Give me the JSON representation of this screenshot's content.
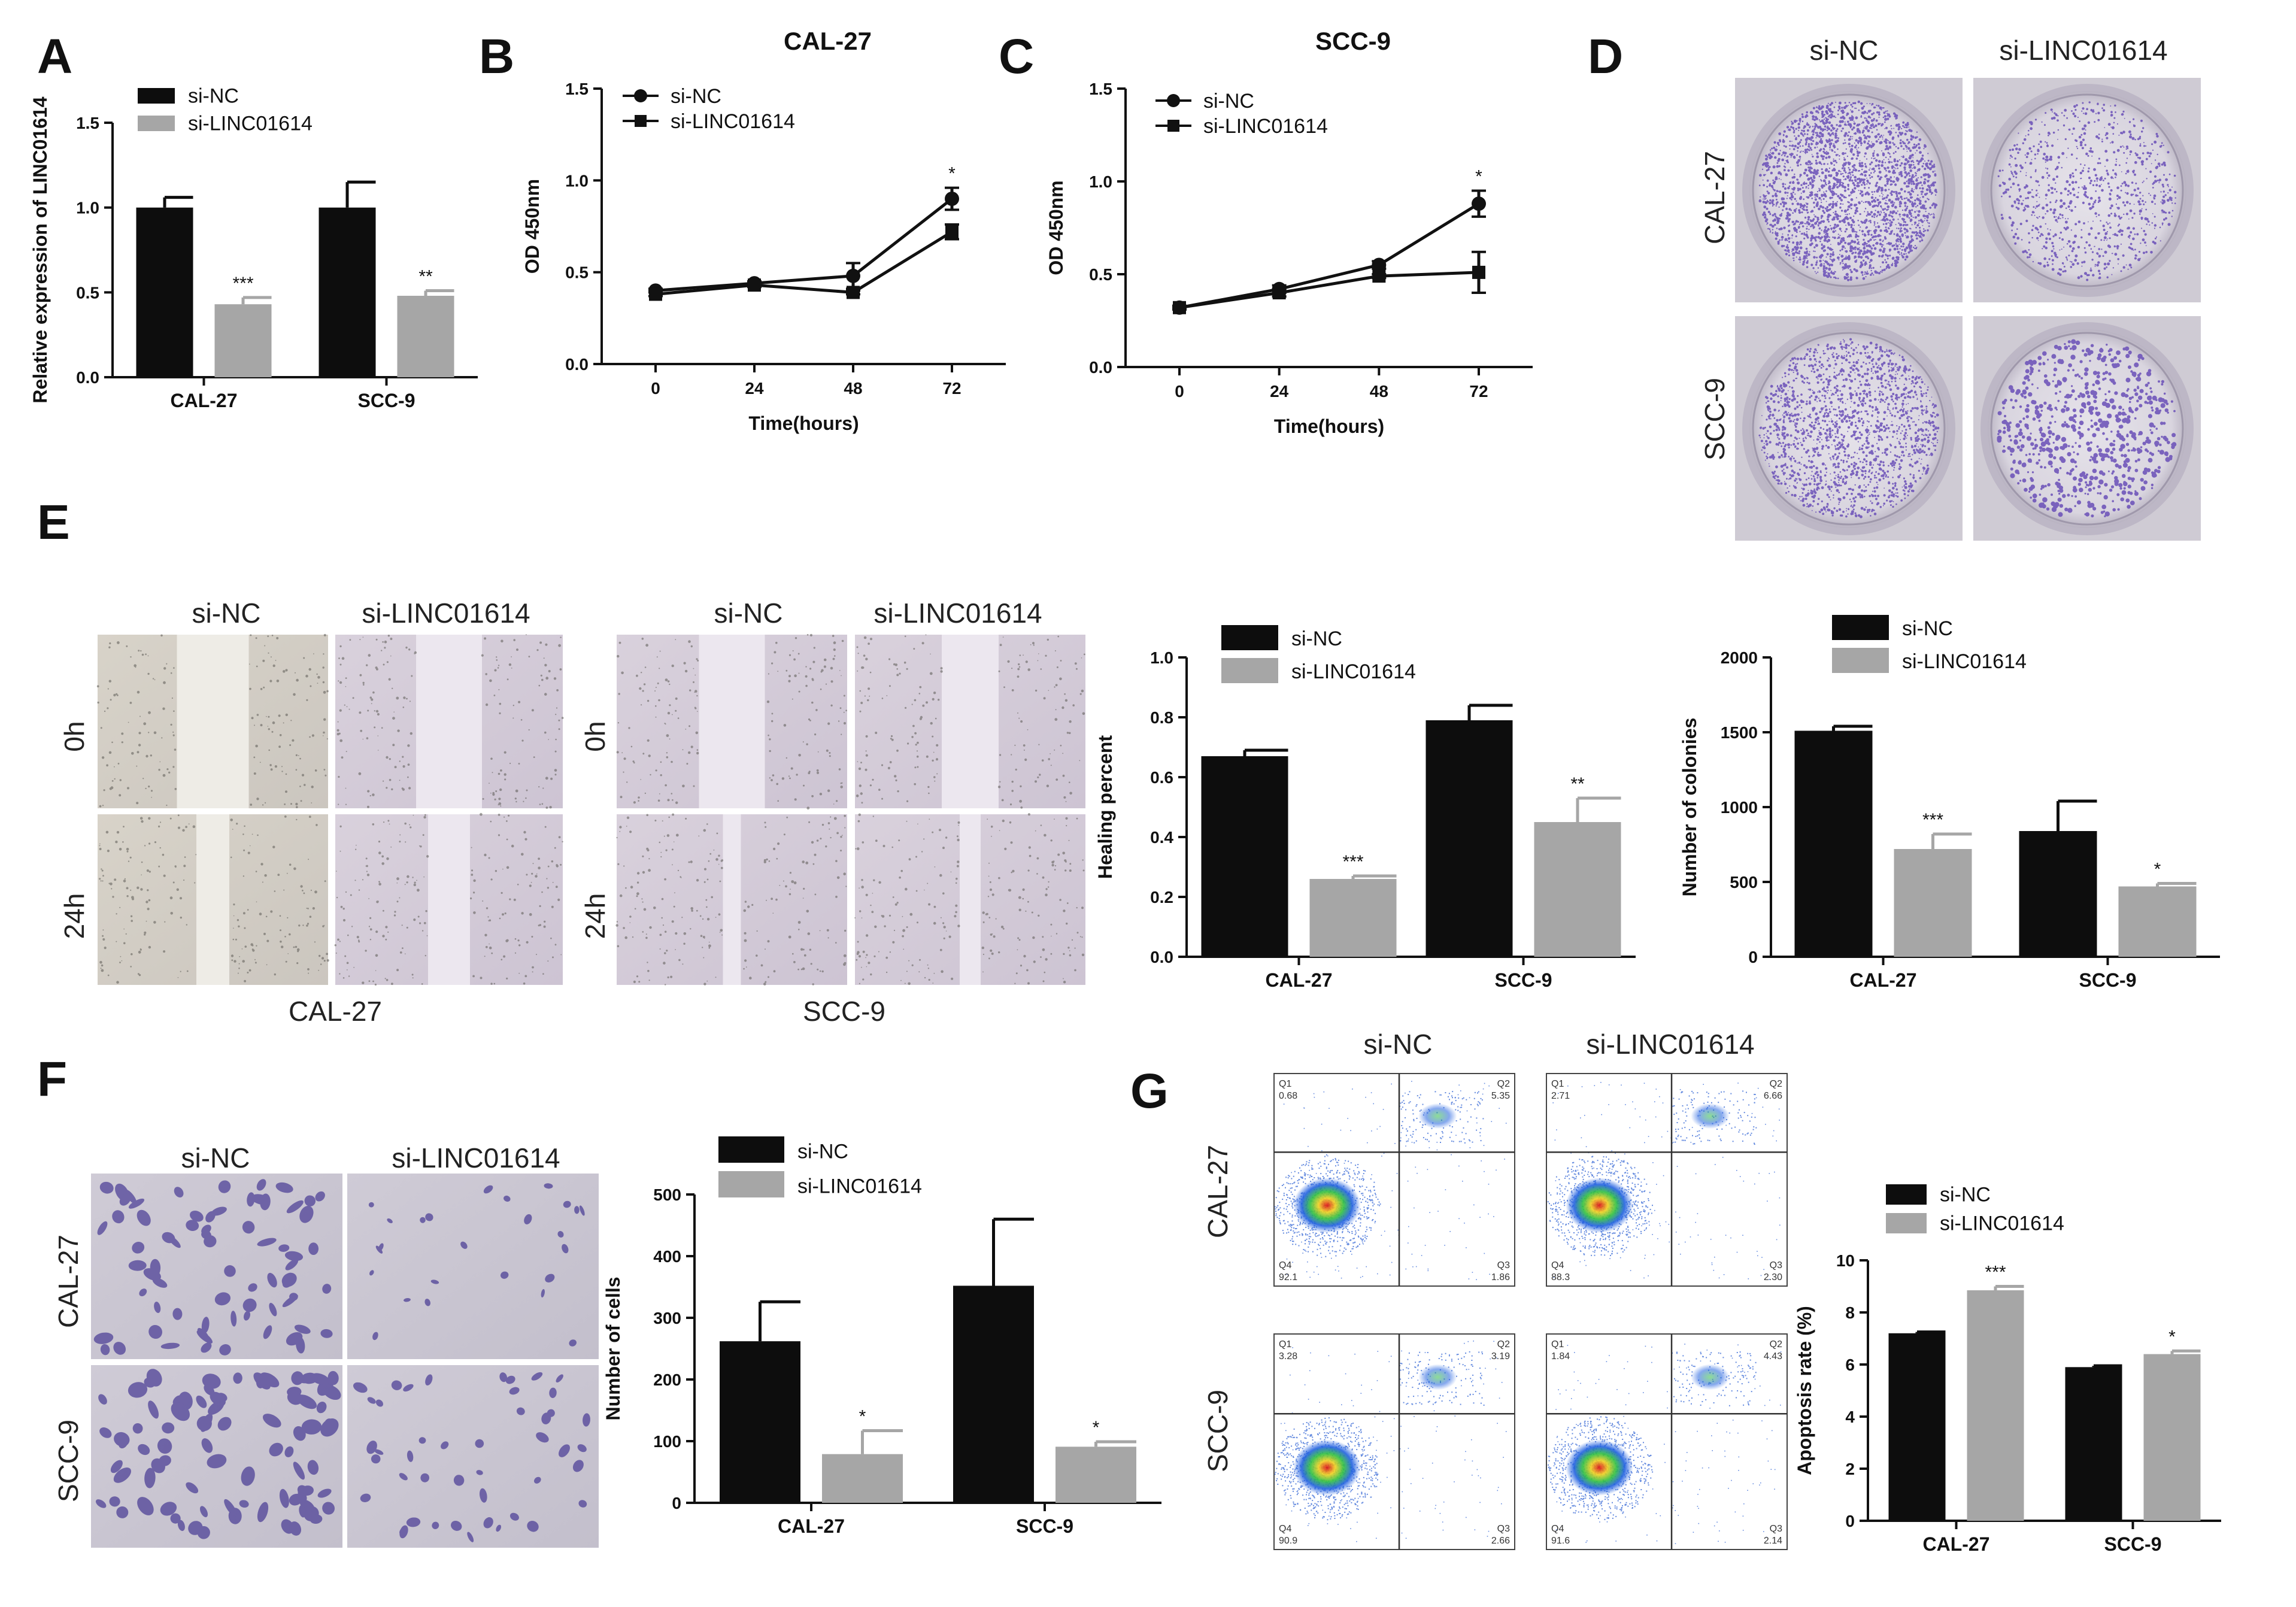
{
  "panel_labels": {
    "A": "A",
    "B": "B",
    "C": "C",
    "D": "D",
    "E": "E",
    "F": "F",
    "G": "G"
  },
  "groups": {
    "nc": "si-NC",
    "si": "si-LINC01614"
  },
  "colors": {
    "nc": "#0d0d0d",
    "si": "#a6a6a6",
    "line": "#111111"
  },
  "image_labels": {
    "cal27": "CAL-27",
    "scc9": "SCC-9",
    "t0": "0h",
    "t24": "24h"
  },
  "flow_quadrants": {
    "cal27_nc": {
      "q1": "Q1",
      "q1v": "0.68",
      "q2": "Q2",
      "q2v": "5.35",
      "q3": "Q3",
      "q3v": "1.86",
      "q4": "Q4",
      "q4v": "92.1"
    },
    "cal27_si": {
      "q1": "Q1",
      "q1v": "2.71",
      "q2": "Q2",
      "q2v": "6.66",
      "q3": "Q3",
      "q3v": "2.30",
      "q4": "Q4",
      "q4v": "88.3"
    },
    "scc9_nc": {
      "q1": "Q1",
      "q1v": "3.28",
      "q2": "Q2",
      "q2v": "3.19",
      "q3": "Q3",
      "q3v": "2.66",
      "q4": "Q4",
      "q4v": "90.9"
    },
    "scc9_si": {
      "q1": "Q1",
      "q1v": "1.84",
      "q2": "Q2",
      "q2v": "4.43",
      "q3": "Q3",
      "q3v": "2.14",
      "q4": "Q4",
      "q4v": "91.6"
    }
  },
  "chart_data": [
    {
      "id": "A",
      "type": "bar",
      "title": "",
      "xlabel": "",
      "ylabel": "Relative expression of LINC01614",
      "categories": [
        "CAL-27",
        "SCC-9"
      ],
      "ylim": [
        0,
        1.5
      ],
      "yticks": [
        "0.0",
        "0.5",
        "1.0",
        "1.5"
      ],
      "series": [
        {
          "name": "si-NC",
          "values": [
            1.0,
            1.0
          ],
          "errors": [
            0.06,
            0.15
          ]
        },
        {
          "name": "si-LINC01614",
          "values": [
            0.43,
            0.48
          ],
          "errors": [
            0.04,
            0.03
          ]
        }
      ],
      "significance": [
        "***",
        "**"
      ]
    },
    {
      "id": "B",
      "type": "line",
      "title": "CAL-27",
      "xlabel": "Time(hours)",
      "ylabel": "OD 450nm",
      "x": [
        0,
        24,
        48,
        72
      ],
      "xticks": [
        "0",
        "24",
        "48",
        "72"
      ],
      "ylim": [
        0,
        1.5
      ],
      "yticks": [
        "0.0",
        "0.5",
        "1.0",
        "1.5"
      ],
      "series": [
        {
          "name": "si-NC",
          "marker": "circle",
          "values": [
            0.4,
            0.44,
            0.48,
            0.9
          ],
          "errors": [
            0.01,
            0.01,
            0.07,
            0.06
          ]
        },
        {
          "name": "si-LINC01614",
          "marker": "square",
          "values": [
            0.38,
            0.43,
            0.39,
            0.72
          ],
          "errors": [
            0.01,
            0.01,
            0.01,
            0.04
          ]
        }
      ],
      "annotations": [
        {
          "x": 72,
          "text": "*"
        }
      ]
    },
    {
      "id": "C",
      "type": "line",
      "title": "SCC-9",
      "xlabel": "Time(hours)",
      "ylabel": "OD 450nm",
      "x": [
        0,
        24,
        48,
        72
      ],
      "xticks": [
        "0",
        "24",
        "48",
        "72"
      ],
      "ylim": [
        0,
        1.5
      ],
      "yticks": [
        "0.0",
        "0.5",
        "1.0",
        "1.5"
      ],
      "series": [
        {
          "name": "si-NC",
          "marker": "circle",
          "values": [
            0.32,
            0.42,
            0.55,
            0.88
          ],
          "errors": [
            0.01,
            0.02,
            0.02,
            0.07
          ]
        },
        {
          "name": "si-LINC01614",
          "marker": "square",
          "values": [
            0.32,
            0.4,
            0.49,
            0.51
          ],
          "errors": [
            0.01,
            0.02,
            0.01,
            0.11
          ]
        }
      ],
      "annotations": [
        {
          "x": 72,
          "text": "*"
        }
      ]
    },
    {
      "id": "E_heal",
      "type": "bar",
      "title": "",
      "xlabel": "",
      "ylabel": "Healing percent",
      "categories": [
        "CAL-27",
        "SCC-9"
      ],
      "ylim": [
        0,
        1.0
      ],
      "yticks": [
        "0.0",
        "0.2",
        "0.4",
        "0.6",
        "0.8",
        "1.0"
      ],
      "series": [
        {
          "name": "si-NC",
          "values": [
            0.67,
            0.79
          ],
          "errors": [
            0.02,
            0.05
          ]
        },
        {
          "name": "si-LINC01614",
          "values": [
            0.26,
            0.45
          ],
          "errors": [
            0.01,
            0.08
          ]
        }
      ],
      "significance": [
        "***",
        "**"
      ]
    },
    {
      "id": "E_col",
      "type": "bar",
      "title": "",
      "xlabel": "",
      "ylabel": "Number of colonies",
      "categories": [
        "CAL-27",
        "SCC-9"
      ],
      "ylim": [
        0,
        2000
      ],
      "yticks": [
        "0",
        "500",
        "1000",
        "1500",
        "2000"
      ],
      "series": [
        {
          "name": "si-NC",
          "values": [
            1510,
            840
          ],
          "errors": [
            30,
            200
          ]
        },
        {
          "name": "si-LINC01614",
          "values": [
            720,
            470
          ],
          "errors": [
            100,
            20
          ]
        }
      ],
      "significance": [
        "***",
        "*"
      ]
    },
    {
      "id": "F",
      "type": "bar",
      "title": "",
      "xlabel": "",
      "ylabel": "Number of cells",
      "categories": [
        "CAL-27",
        "SCC-9"
      ],
      "ylim": [
        0,
        500
      ],
      "yticks": [
        "0",
        "100",
        "200",
        "300",
        "400",
        "500"
      ],
      "series": [
        {
          "name": "si-NC",
          "values": [
            262,
            352
          ],
          "errors": [
            64,
            108
          ]
        },
        {
          "name": "si-LINC01614",
          "values": [
            79,
            91
          ],
          "errors": [
            38,
            8
          ]
        }
      ],
      "significance": [
        "*",
        "*"
      ]
    },
    {
      "id": "G",
      "type": "bar",
      "title": "",
      "xlabel": "",
      "ylabel": "Apoptosis rate (%)",
      "categories": [
        "CAL-27",
        "SCC-9"
      ],
      "ylim": [
        0,
        10
      ],
      "yticks": [
        "0",
        "2",
        "4",
        "6",
        "8",
        "10"
      ],
      "series": [
        {
          "name": "si-NC",
          "values": [
            7.2,
            5.9
          ],
          "errors": [
            0.05,
            0.05
          ]
        },
        {
          "name": "si-LINC01614",
          "values": [
            8.85,
            6.4
          ],
          "errors": [
            0.15,
            0.12
          ]
        }
      ],
      "significance": [
        "***",
        "*"
      ]
    }
  ]
}
